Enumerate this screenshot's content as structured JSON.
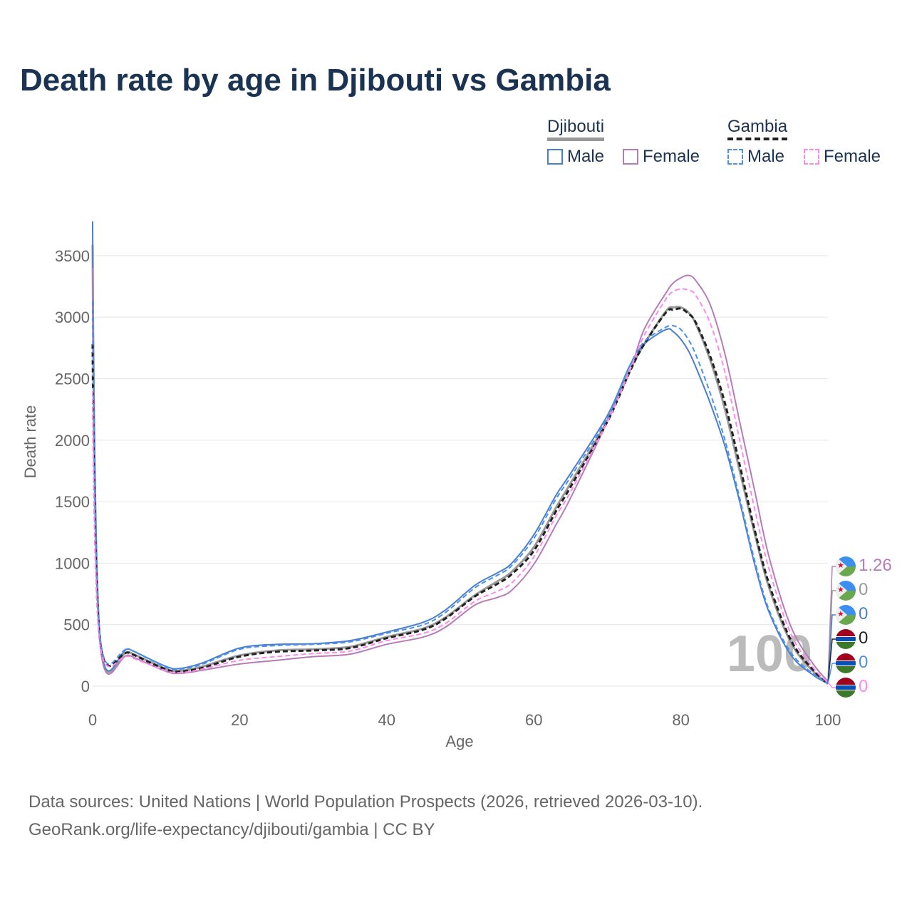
{
  "chart_data": {
    "type": "line",
    "title": "Death rate by age in Djibouti vs Gambia",
    "xlabel": "Age",
    "ylabel": "Death rate",
    "xlim": [
      0,
      100
    ],
    "ylim": [
      0,
      3800
    ],
    "xticks": [
      "0",
      "20",
      "40",
      "60",
      "80",
      "100"
    ],
    "yticks": [
      "0",
      "500",
      "1000",
      "1500",
      "2000",
      "2500",
      "3000",
      "3500"
    ],
    "grid": true,
    "watermark": "100",
    "legend": {
      "groups": [
        {
          "label": "Djibouti",
          "items": [
            "Male",
            "Female"
          ]
        },
        {
          "label": "Gambia",
          "items": [
            "Male",
            "Female"
          ]
        }
      ],
      "placement": "top-right"
    },
    "x": [
      0,
      1,
      5,
      10,
      12,
      15,
      20,
      25,
      30,
      35,
      40,
      45,
      48,
      52,
      55,
      57,
      60,
      63,
      65,
      70,
      73,
      75,
      78,
      79,
      80,
      81,
      82,
      84,
      86,
      88,
      90,
      92,
      95,
      98,
      100
    ],
    "series": [
      {
        "name": "Djibouti Total",
        "color": "#999999",
        "dash": false,
        "end_label": "0",
        "values": [
          3590,
          380,
          275,
          140,
          125,
          160,
          250,
          290,
          300,
          320,
          400,
          470,
          560,
          740,
          850,
          930,
          1130,
          1450,
          1650,
          2160,
          2560,
          2780,
          3050,
          3080,
          3080,
          3040,
          2950,
          2650,
          2250,
          1750,
          1250,
          800,
          350,
          120,
          20
        ]
      },
      {
        "name": "Djibouti Male",
        "color": "#4a7fd0",
        "dash": false,
        "end_label": "0",
        "values": [
          3780,
          400,
          300,
          160,
          145,
          190,
          310,
          340,
          345,
          370,
          440,
          520,
          620,
          820,
          920,
          1000,
          1230,
          1550,
          1730,
          2200,
          2600,
          2780,
          2900,
          2880,
          2820,
          2730,
          2600,
          2300,
          1950,
          1500,
          1000,
          600,
          250,
          90,
          20
        ]
      },
      {
        "name": "Djibouti Female",
        "color": "#b77cb8",
        "dash": false,
        "end_label": "1.26",
        "values": [
          3400,
          350,
          250,
          120,
          105,
          130,
          180,
          210,
          240,
          260,
          340,
          400,
          480,
          660,
          720,
          780,
          990,
          1310,
          1530,
          2150,
          2550,
          2900,
          3200,
          3280,
          3320,
          3340,
          3300,
          3100,
          2700,
          2150,
          1600,
          1050,
          480,
          180,
          40
        ]
      },
      {
        "name": "Gambia Total",
        "color": "#222222",
        "dash": true,
        "end_label": "0",
        "values": [
          2780,
          370,
          270,
          135,
          120,
          150,
          240,
          280,
          290,
          310,
          390,
          460,
          550,
          730,
          830,
          910,
          1100,
          1420,
          1620,
          2150,
          2550,
          2780,
          3040,
          3060,
          3070,
          3030,
          2960,
          2680,
          2300,
          1800,
          1280,
          830,
          370,
          130,
          20
        ]
      },
      {
        "name": "Gambia Male",
        "color": "#4a90f0",
        "dash": true,
        "end_label": "0",
        "values": [
          3130,
          410,
          300,
          155,
          140,
          180,
          300,
          330,
          340,
          360,
          430,
          500,
          600,
          800,
          900,
          980,
          1200,
          1520,
          1700,
          2180,
          2600,
          2800,
          2920,
          2930,
          2900,
          2820,
          2700,
          2380,
          2000,
          1530,
          1030,
          620,
          270,
          100,
          20
        ]
      },
      {
        "name": "Gambia Female",
        "color": "#ff88ee",
        "dash": true,
        "end_label": "0",
        "values": [
          2400,
          340,
          240,
          125,
          110,
          140,
          210,
          240,
          265,
          285,
          370,
          430,
          510,
          690,
          770,
          840,
          1050,
          1380,
          1580,
          2150,
          2560,
          2850,
          3150,
          3210,
          3230,
          3220,
          3180,
          2950,
          2550,
          2000,
          1450,
          950,
          420,
          150,
          30
        ]
      }
    ]
  },
  "footer": {
    "line1": "Data sources: United Nations | World Population Prospects (2026, retrieved 2026-03-10).",
    "line2": "GeoRank.org/life-expectancy/djibouti/gambia | CC BY"
  }
}
